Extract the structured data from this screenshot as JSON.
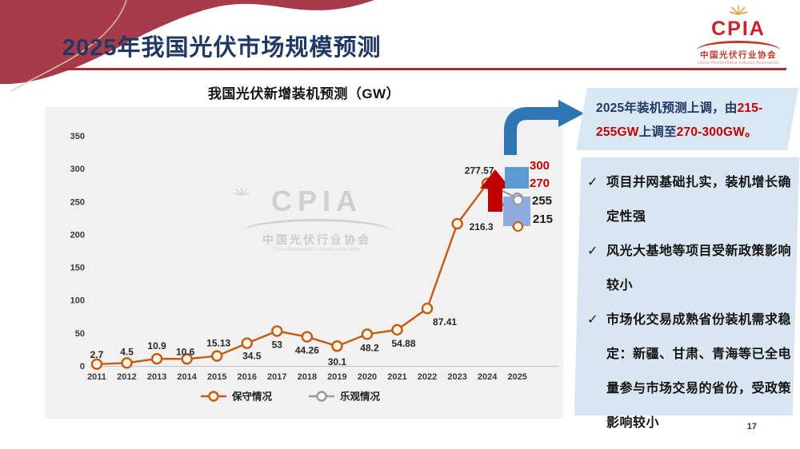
{
  "slide": {
    "title": "2025年我国光伏市场规模预测",
    "page_number": "17"
  },
  "logo": {
    "acronym": "CPIA",
    "name_cn": "中国光伏行业协会",
    "name_en": "China Photovoltaics Industry Association"
  },
  "watermark": {
    "acronym": "CPIA",
    "name_cn": "中国光伏行业协会",
    "name_en": "China Photovoltaics Industry Association"
  },
  "chart_data": {
    "type": "line",
    "title": "我国光伏新增装机预测（GW）",
    "categories": [
      "2011",
      "2012",
      "2013",
      "2014",
      "2015",
      "2016",
      "2017",
      "2018",
      "2019",
      "2020",
      "2021",
      "2022",
      "2023",
      "2024",
      "2025"
    ],
    "series": [
      {
        "name": "保守情况",
        "color": "#C55A11",
        "marker_fill": "#FBF3E6",
        "values": [
          2.7,
          4.5,
          10.9,
          10.6,
          15.13,
          34.5,
          53,
          44.26,
          30.1,
          48.2,
          54.88,
          87.41,
          216.3,
          277.57,
          215
        ]
      },
      {
        "name": "乐观情况",
        "color": "#9A9A9A",
        "marker_fill": "#FAFAFA",
        "values": [
          null,
          null,
          null,
          null,
          null,
          null,
          null,
          null,
          null,
          null,
          null,
          null,
          null,
          277.57,
          255
        ]
      }
    ],
    "ylim": [
      0,
      350
    ],
    "yticks": [
      0,
      50,
      100,
      150,
      200,
      250,
      300,
      350
    ],
    "grid": false,
    "legend_position": "bottom"
  },
  "annotations": {
    "labels": [
      {
        "text": "300",
        "color": "red"
      },
      {
        "text": "270",
        "color": "red"
      },
      {
        "text": "255",
        "color": "black"
      },
      {
        "text": "215",
        "color": "black"
      }
    ]
  },
  "callout": {
    "segments": [
      {
        "text": "2025年装机预测上调，由",
        "color": "navy"
      },
      {
        "text": "215-255GW",
        "color": "red"
      },
      {
        "text": "上调至",
        "color": "navy"
      },
      {
        "text": "270-300GW",
        "color": "red"
      },
      {
        "text": "。",
        "color": "red"
      }
    ]
  },
  "bullets": [
    "项目并网基础扎实，装机增长确定性强",
    "风光大基地等项目受新政策影响较小",
    "市场化交易成熟省份装机需求稳定：新疆、甘肃、青海等已全电量参与市场交易的省份，受政策影响较小"
  ],
  "colors": {
    "accent_red": "#C00000",
    "title_navy": "#1F3864",
    "line_orange": "#C55A11",
    "line_gray": "#9A9A9A",
    "box_blue_dark": "#5B9BD5",
    "box_blue_light": "#8FAADC",
    "arrow_blue": "#2E75B6",
    "callout_bg": "#D9E6F3",
    "panel_bg": "#D9E5F1",
    "deco_red": "#A73B4C",
    "chart_bg": "#F1F1F1"
  }
}
